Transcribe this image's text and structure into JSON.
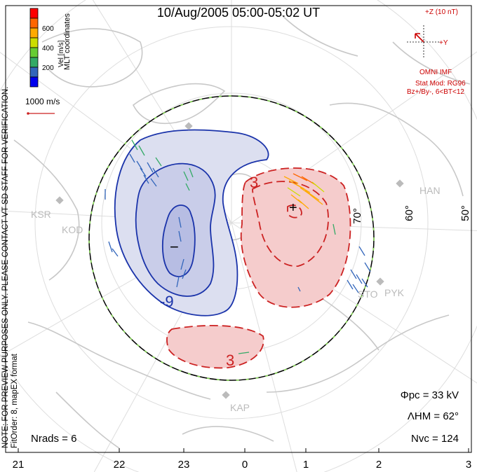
{
  "title": "10/Aug/2005 05:00-05:02 UT",
  "colorbar": {
    "label": "Vel [m/s]",
    "ticks": [
      "600",
      "400",
      "200"
    ],
    "colors": [
      "#ff0000",
      "#ff6600",
      "#ffaa00",
      "#ccdd00",
      "#66cc33",
      "#33aa66",
      "#3366bb",
      "#0000ee"
    ]
  },
  "mlt_coordinates_label": "MLT coordinates",
  "vector_scale_label": "1000 m/s",
  "side_note": {
    "line1": "NOTE: FOR PREVIEW PURPOSES ONLY. PLEASE CONTACT VT-SD STAFF FOR VERIFICATION.",
    "line2": "FitOrder: 8, mapEX format"
  },
  "imf": {
    "z_label": "+Z (10 nT)",
    "y_label": "+Y",
    "source": "OMNI IMF",
    "stat_mod": "Stat Mod: RG96",
    "condition": "Bz+/By-, 6<BT<12"
  },
  "stats": {
    "phi_pc": "Φpc = 33 kV",
    "lambda_hm": "ΛHM = 62°",
    "n_vc": "Nvc = 124",
    "n_rads": "Nrads = 6"
  },
  "latitude_labels": [
    "70°",
    "60°",
    "50°"
  ],
  "mlt_ticks": [
    "21",
    "22",
    "23",
    "0",
    "1",
    "2",
    "3"
  ],
  "contour_labels": [
    "-9",
    "3",
    "3"
  ],
  "extrema_markers": [
    "+",
    "−"
  ],
  "radar_sites": [
    "KSR",
    "KOD",
    "HAN",
    "STO",
    "PYK",
    "KAP"
  ],
  "colors": {
    "negative_cell_line": "#1a33aa",
    "negative_cell_fill": "#c9cde9",
    "positive_cell_line": "#cc2222",
    "positive_cell_fill": "#f5cccc",
    "heppner_boundary": "#000000",
    "boundary_dash": "#88dd55",
    "coastline": "#c8c8c8",
    "imf_vector": "#cc0000"
  }
}
